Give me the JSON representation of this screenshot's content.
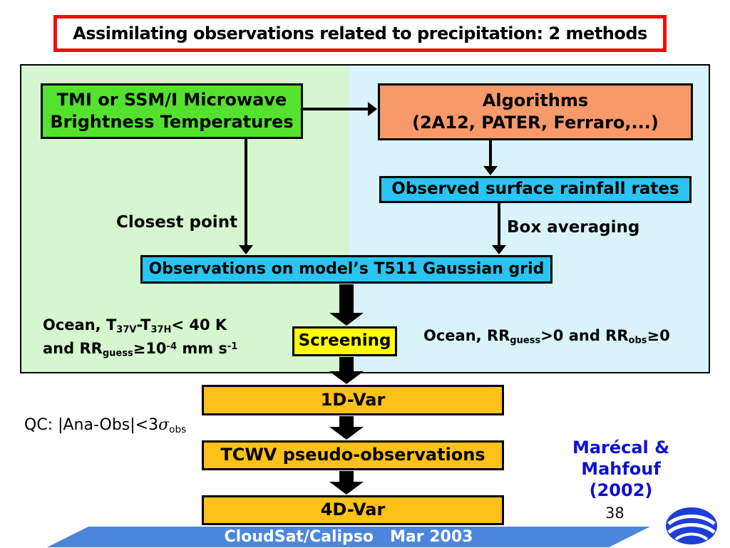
{
  "slide": {
    "title": "Assimilating observations related to precipitation: 2 methods",
    "footer_text": "CloudSat/Calipso   Mar 2003",
    "page_number": "38"
  },
  "diagram": {
    "tmi_box": {
      "line1": "TMI or SSM/I Microwave",
      "line2": "Brightness Temperatures"
    },
    "algorithms_box": {
      "line1": "Algorithms",
      "line2": "(2A12, PATER, Ferraro,...)"
    },
    "observed_box_label": "Observed surface rainfall rates",
    "closest_point_label": "Closest point",
    "box_averaging_label": "Box averaging",
    "grid_box_label": "Observations on model’s T511 Gaussian grid",
    "screening_box_label": "Screening",
    "screening_criteria_left_line1": [
      {
        "t": "Ocean, T"
      },
      {
        "t": "37V",
        "s": "sub"
      },
      {
        "t": "-T"
      },
      {
        "t": "37H",
        "s": "sub"
      },
      {
        "t": "< 40 K"
      }
    ],
    "screening_criteria_left_line2": [
      {
        "t": "and RR"
      },
      {
        "t": "guess",
        "s": "sub"
      },
      {
        "t": "≥10"
      },
      {
        "t": "-4",
        "s": "sup"
      },
      {
        "t": " mm s"
      },
      {
        "t": "-1",
        "s": "sup"
      }
    ],
    "screening_criteria_right": [
      {
        "t": "Ocean, RR"
      },
      {
        "t": "guess",
        "s": "sub"
      },
      {
        "t": ">0 and RR"
      },
      {
        "t": "obs",
        "s": "sub"
      },
      {
        "t": "≥0"
      }
    ],
    "qc_label": [
      {
        "t": "QC: |Ana-Obs|<3"
      },
      {
        "t": "σ",
        "s": "italic"
      },
      {
        "t": "obs",
        "s": "sub"
      }
    ],
    "one_d_var_label": "1D-Var",
    "tcwv_label": "TCWV pseudo-observations",
    "four_d_var_label": "4D-Var",
    "reference": {
      "line1": "Marécal & Mahfouf",
      "line2": "(2002)"
    }
  },
  "colors": {
    "title_border": "#f10e0e",
    "left_panel": "#d5f6cf",
    "right_panel": "#d8f3f9",
    "tmi_green": "#54e22e",
    "algorithms_orange": "#f8996a",
    "cyan_box": "#29c4f0",
    "screening_yellow": "#ffff00",
    "var_gold": "#fdc117",
    "footer_blue": "#4c86dc",
    "reference_blue": "#0f0fd0"
  }
}
